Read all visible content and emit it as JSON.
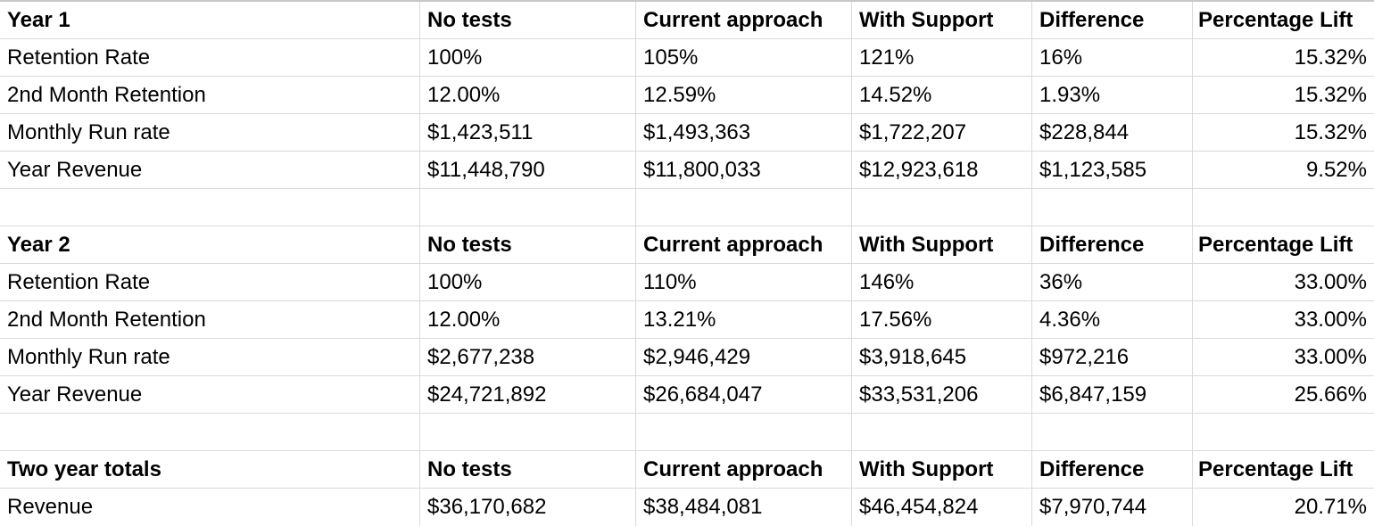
{
  "sections": [
    {
      "header": [
        "Year 1",
        "No tests",
        "Current approach",
        "With Support",
        "Difference",
        "Percentage Lift"
      ],
      "rows": [
        [
          "Retention Rate",
          "100%",
          "105%",
          "121%",
          "16%",
          "15.32%"
        ],
        [
          "2nd Month Retention",
          "12.00%",
          "12.59%",
          "14.52%",
          "1.93%",
          "15.32%"
        ],
        [
          "Monthly Run rate",
          "$1,423,511",
          "$1,493,363",
          "$1,722,207",
          "$228,844",
          "15.32%"
        ],
        [
          "Year Revenue",
          "$11,448,790",
          "$11,800,033",
          "$12,923,618",
          "$1,123,585",
          "9.52%"
        ]
      ]
    },
    {
      "header": [
        "Year 2",
        "No tests",
        "Current approach",
        "With Support",
        "Difference",
        "Percentage Lift"
      ],
      "rows": [
        [
          "Retention Rate",
          "100%",
          "110%",
          "146%",
          "36%",
          "33.00%"
        ],
        [
          "2nd Month Retention",
          "12.00%",
          "13.21%",
          "17.56%",
          "4.36%",
          "33.00%"
        ],
        [
          "Monthly Run rate",
          "$2,677,238",
          "$2,946,429",
          "$3,918,645",
          "$972,216",
          "33.00%"
        ],
        [
          "Year Revenue",
          "$24,721,892",
          "$26,684,047",
          "$33,531,206",
          "$6,847,159",
          "25.66%"
        ]
      ]
    },
    {
      "header": [
        "Two year totals",
        "No tests",
        "Current approach",
        "With Support",
        "Difference",
        "Percentage Lift"
      ],
      "rows": [
        [
          "Revenue",
          "$36,170,682",
          "$38,484,081",
          "$46,454,824",
          "$7,970,744",
          "20.71%"
        ]
      ]
    }
  ]
}
